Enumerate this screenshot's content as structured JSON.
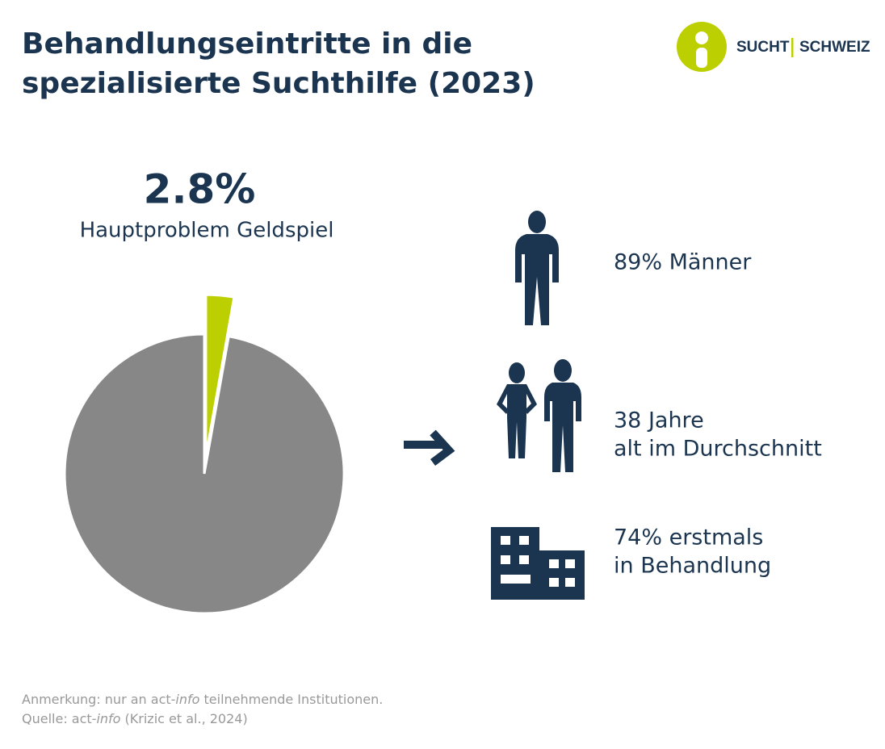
{
  "chart_data": {
    "type": "pie",
    "title": "Behandlungseintritte in die spezialisierte Suchthilfe (2023)",
    "categories": [
      "Hauptproblem Geldspiel",
      null
    ],
    "values": [
      2.8,
      97.2
    ],
    "value_labels": [
      "2.8%",
      null
    ],
    "colors": [
      "#bccf00",
      "#878787"
    ],
    "highlight": 0
  },
  "logo": {
    "left": "SUCHT",
    "right": "SCHWEIZ"
  },
  "facts": [
    {
      "lines": [
        "89% Männer"
      ]
    },
    {
      "lines": [
        "38 Jahre",
        "alt im Durchschnitt"
      ]
    },
    {
      "lines": [
        "74% erstmals",
        "in Behandlung"
      ]
    }
  ],
  "footer": {
    "note": [
      "Anmerkung: nur an act-",
      "info",
      " teilnehmende Institutionen."
    ],
    "source": [
      "Quelle: act-",
      "info",
      " (Krizic et al., 2024)"
    ]
  }
}
